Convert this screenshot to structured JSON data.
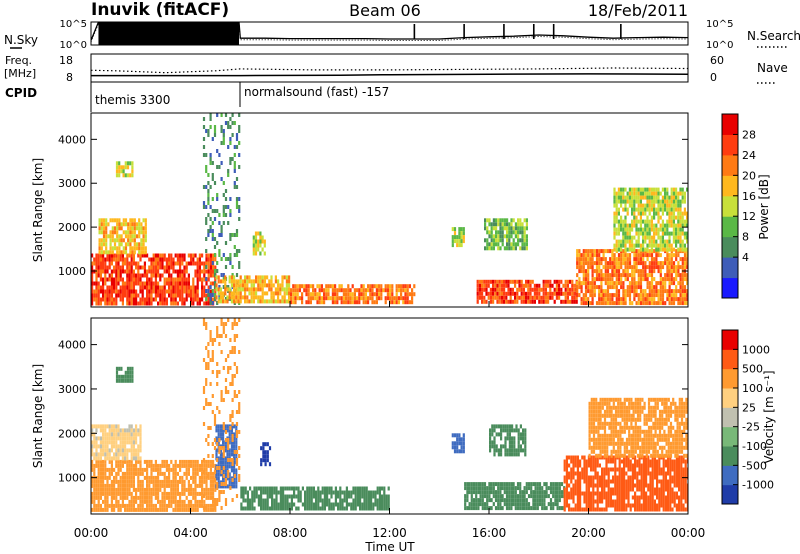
{
  "header": {
    "station": "Inuvik (fitACF)",
    "beam": "Beam 06",
    "date": "18/Feb/2011"
  },
  "noise_panel": {
    "left_label": "N.Sky",
    "right_label": "N.Search",
    "left_ticks": [
      "10^5",
      "10^0"
    ],
    "right_ticks": [
      "10^5",
      "10^0"
    ]
  },
  "freq_panel": {
    "left_label_line1": "Freq.",
    "left_label_line2": "[MHz]",
    "right_label": "Nave",
    "left_ticks": [
      "18",
      "8"
    ],
    "right_ticks": [
      "60",
      "0"
    ]
  },
  "cpid": {
    "label": "CPID",
    "segments": [
      {
        "name": "themis 3300",
        "start_hour": 0
      },
      {
        "name": "normalsound (fast) -157",
        "start_hour": 6
      }
    ]
  },
  "x_axis": {
    "label": "Time UT",
    "ticks": [
      "00:00",
      "04:00",
      "08:00",
      "12:00",
      "16:00",
      "20:00",
      "00:00"
    ],
    "range_hours": [
      0,
      24
    ]
  },
  "colorbars": {
    "power": {
      "label": "Power [dB]",
      "ticks": [
        "28",
        "24",
        "20",
        "16",
        "12",
        "8",
        "4"
      ],
      "colors": [
        "#1a1aff",
        "#3e5cb8",
        "#4a8c5c",
        "#5ab846",
        "#c8e03a",
        "#ffb81e",
        "#ff7a14",
        "#ff3c10",
        "#e80000"
      ]
    },
    "velocity": {
      "label": "Velocity [m s⁻¹]",
      "ticks": [
        "1000",
        "500",
        "100",
        "25",
        "-25",
        "-100",
        "-500",
        "-1000"
      ],
      "colors": [
        "#1f3ca8",
        "#3f6cc0",
        "#4a8c5c",
        "#78b878",
        "#c0c0b0",
        "#ffd080",
        "#ff9a30",
        "#ff5a14",
        "#e80000"
      ]
    }
  },
  "chart_data": [
    {
      "type": "heatmap",
      "title": "",
      "xlabel": "",
      "ylabel": "Slant Range [km]",
      "xlim": [
        0,
        24
      ],
      "ylim": [
        180,
        4600
      ],
      "y_ticks": [
        1000,
        2000,
        3000,
        4000
      ],
      "colorbar_label": "Power [dB]",
      "regions": [
        {
          "x": [
            0.0,
            5.0
          ],
          "y": [
            300,
            1400
          ],
          "value": 28
        },
        {
          "x": [
            0.3,
            2.2
          ],
          "y": [
            1400,
            2200
          ],
          "value": 20
        },
        {
          "x": [
            1.0,
            1.7
          ],
          "y": [
            3200,
            3500
          ],
          "value": 16
        },
        {
          "x": [
            4.5,
            6.0
          ],
          "y": [
            300,
            4600
          ],
          "value": 8
        },
        {
          "x": [
            5.0,
            8.0
          ],
          "y": [
            300,
            900
          ],
          "value": 20
        },
        {
          "x": [
            6.5,
            7.0
          ],
          "y": [
            1400,
            1900
          ],
          "value": 16
        },
        {
          "x": [
            8.0,
            13.0
          ],
          "y": [
            300,
            700
          ],
          "value": 24
        },
        {
          "x": [
            14.5,
            15.0
          ],
          "y": [
            1600,
            2000
          ],
          "value": 16
        },
        {
          "x": [
            15.5,
            19.5
          ],
          "y": [
            300,
            800
          ],
          "value": 28
        },
        {
          "x": [
            15.8,
            17.5
          ],
          "y": [
            1500,
            2200
          ],
          "value": 12
        },
        {
          "x": [
            19.5,
            24.0
          ],
          "y": [
            300,
            1500
          ],
          "value": 24
        },
        {
          "x": [
            21.0,
            24.0
          ],
          "y": [
            1500,
            2900
          ],
          "value": 16
        }
      ]
    },
    {
      "type": "heatmap",
      "title": "",
      "xlabel": "Time UT",
      "ylabel": "Slant Range [km]",
      "xlim": [
        0,
        24
      ],
      "ylim": [
        180,
        4600
      ],
      "y_ticks": [
        1000,
        2000,
        3000,
        4000
      ],
      "colorbar_label": "Velocity [m s⁻¹]",
      "regions": [
        {
          "x": [
            0.0,
            5.0
          ],
          "y": [
            300,
            1400
          ],
          "value": -100
        },
        {
          "x": [
            0.0,
            2.0
          ],
          "y": [
            1400,
            2200
          ],
          "value": -25
        },
        {
          "x": [
            1.0,
            1.7
          ],
          "y": [
            3200,
            3500
          ],
          "value": 100
        },
        {
          "x": [
            5.0,
            5.8
          ],
          "y": [
            800,
            2200
          ],
          "value": 500
        },
        {
          "x": [
            4.5,
            6.0
          ],
          "y": [
            300,
            4600
          ],
          "value": -100
        },
        {
          "x": [
            6.0,
            12.0
          ],
          "y": [
            300,
            800
          ],
          "value": 100
        },
        {
          "x": [
            6.8,
            7.2
          ],
          "y": [
            1300,
            1800
          ],
          "value": 1000
        },
        {
          "x": [
            14.5,
            15.0
          ],
          "y": [
            1600,
            2000
          ],
          "value": 500
        },
        {
          "x": [
            15.0,
            19.0
          ],
          "y": [
            300,
            900
          ],
          "value": 100
        },
        {
          "x": [
            16.0,
            17.5
          ],
          "y": [
            1500,
            2200
          ],
          "value": 100
        },
        {
          "x": [
            19.0,
            24.0
          ],
          "y": [
            300,
            1500
          ],
          "value": -500
        },
        {
          "x": [
            20.0,
            24.0
          ],
          "y": [
            1500,
            2800
          ],
          "value": -100
        }
      ]
    },
    {
      "type": "line",
      "title": "",
      "series": [
        {
          "name": "N.Sky",
          "x": [
            0,
            0.3,
            1,
            2,
            3,
            4,
            5,
            5.95,
            6,
            7,
            8,
            9,
            10,
            11,
            12,
            13,
            14,
            15,
            16,
            17,
            18,
            19,
            20,
            21,
            22,
            23,
            24
          ],
          "values": [
            10,
            100000,
            100000,
            100000,
            100000,
            100000,
            100000,
            100000,
            30,
            30,
            25,
            25,
            25,
            25,
            20,
            20,
            20,
            40,
            60,
            80,
            150,
            100,
            50,
            30,
            40,
            50,
            40
          ]
        }
      ],
      "ylim": [
        1,
        100000
      ]
    },
    {
      "type": "line",
      "title": "",
      "series": [
        {
          "name": "Freq.",
          "x": [
            0,
            6,
            10,
            12,
            16,
            20,
            24
          ],
          "values": [
            10.3,
            10.3,
            10.4,
            10.6,
            10.8,
            10.9,
            10.8
          ]
        },
        {
          "name": "Nave",
          "x": [
            0,
            1,
            2,
            3,
            4,
            5,
            6,
            9,
            12,
            15,
            18,
            21,
            24
          ],
          "values": [
            25,
            24,
            22,
            20,
            22,
            24,
            28,
            26,
            26,
            27,
            28,
            30,
            29
          ]
        }
      ],
      "ylim": [
        8,
        18
      ]
    }
  ]
}
